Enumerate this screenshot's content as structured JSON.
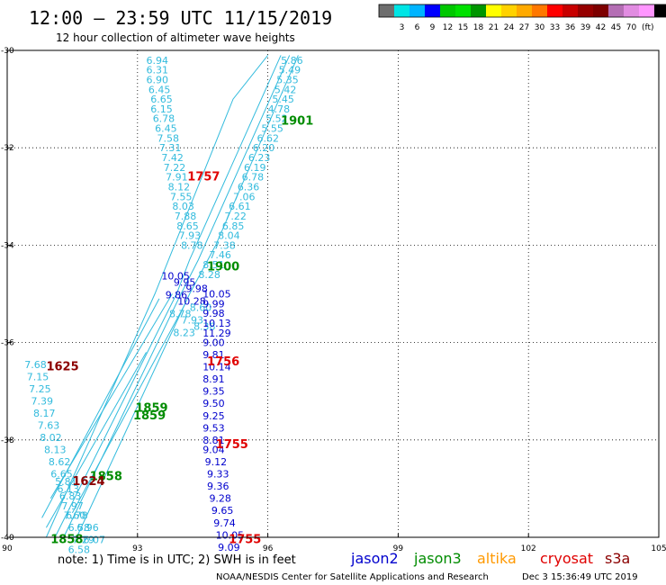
{
  "header": {
    "title": "12:00 – 23:59 UTC 11/15/2019",
    "subtitle": "12 hour collection of altimeter wave heights"
  },
  "colorbar": {
    "colors": [
      "#6e6e6e",
      "#00e5e5",
      "#00b4ff",
      "#0000ff",
      "#00c800",
      "#00e100",
      "#009600",
      "#ffff00",
      "#ffd200",
      "#ffaa00",
      "#ff7800",
      "#ff0000",
      "#c80000",
      "#960000",
      "#7d0000",
      "#b46eb4",
      "#e18ce1",
      "#ff96ff",
      "#000000"
    ],
    "labels": [
      "3",
      "6",
      "9",
      "12",
      "15",
      "18",
      "21",
      "24",
      "27",
      "30",
      "33",
      "36",
      "39",
      "42",
      "45",
      "70"
    ],
    "unit": "(ft)"
  },
  "footer": {
    "note": "note:  1) Time is in UTC;  2) SWH is in feet",
    "credit": "NOAA/NESDIS Center for Satellite Applications and Research",
    "timestamp": "Dec  3 15:36:49 UTC 2019"
  },
  "legend": [
    {
      "name": "jason2",
      "color": "#0000cd"
    },
    {
      "name": "jason3",
      "color": "#008c00"
    },
    {
      "name": "altika",
      "color": "#ff9900"
    },
    {
      "name": "cryosat",
      "color": "#e00000"
    },
    {
      "name": "s3a",
      "color": "#8b0000"
    }
  ],
  "chart_data": {
    "type": "scatter",
    "xlim": [
      90,
      105
    ],
    "ylim": [
      -40,
      -30
    ],
    "xticks": [
      "90",
      "93",
      "96",
      "99",
      "102",
      "105"
    ],
    "yticks": [
      "-30",
      "-32",
      "-34",
      "-36",
      "-38",
      "-40"
    ],
    "grid": true,
    "series": [
      {
        "name": "jason3",
        "color": "#33bbdd",
        "points": [
          [
            93.2,
            -30.2,
            "6.94"
          ],
          [
            93.2,
            -30.4,
            "6.31"
          ],
          [
            93.2,
            -30.6,
            "6.90"
          ],
          [
            93.25,
            -30.8,
            "6.45"
          ],
          [
            93.3,
            -31.0,
            "6.65"
          ],
          [
            93.3,
            -31.2,
            "6.15"
          ],
          [
            93.35,
            -31.4,
            "6.78"
          ],
          [
            93.4,
            -31.6,
            "6.45"
          ],
          [
            93.45,
            -31.8,
            "7.58"
          ],
          [
            93.5,
            -32.0,
            "7.31"
          ],
          [
            93.55,
            -32.2,
            "7.42"
          ],
          [
            93.6,
            -32.4,
            "7.22"
          ],
          [
            93.65,
            -32.6,
            "7.91"
          ],
          [
            93.7,
            -32.8,
            "8.12"
          ],
          [
            93.75,
            -33.0,
            "7.55"
          ],
          [
            93.8,
            -33.2,
            "8.03"
          ],
          [
            93.85,
            -33.4,
            "7.88"
          ],
          [
            93.9,
            -33.6,
            "8.65"
          ],
          [
            93.95,
            -33.8,
            "7.93"
          ],
          [
            94.0,
            -34.0,
            "8.78"
          ]
        ]
      },
      {
        "name": "jason3",
        "color": "#33bbdd",
        "points": [
          [
            96.3,
            -30.2,
            "5.86"
          ],
          [
            96.25,
            -30.4,
            "5.49"
          ],
          [
            96.2,
            -30.6,
            "5.35"
          ],
          [
            96.15,
            -30.8,
            "5.42"
          ],
          [
            96.1,
            -31.0,
            "5.45"
          ],
          [
            96.0,
            -31.2,
            "4.78"
          ],
          [
            95.95,
            -31.4,
            "5.52"
          ],
          [
            95.85,
            -31.6,
            "5.55"
          ],
          [
            95.75,
            -31.8,
            "6.62"
          ],
          [
            95.65,
            -32.0,
            "6.20"
          ],
          [
            95.55,
            -32.2,
            "6.23"
          ],
          [
            95.45,
            -32.4,
            "6.19"
          ],
          [
            95.4,
            -32.6,
            "6.78"
          ],
          [
            95.3,
            -32.8,
            "6.36"
          ],
          [
            95.2,
            -33.0,
            "7.06"
          ],
          [
            95.1,
            -33.2,
            "6.61"
          ],
          [
            95.0,
            -33.4,
            "7.22"
          ],
          [
            94.95,
            -33.6,
            "6.85"
          ],
          [
            94.85,
            -33.8,
            "8.04"
          ],
          [
            94.75,
            -34.0,
            "7.38"
          ],
          [
            94.65,
            -34.2,
            "7.46"
          ],
          [
            94.5,
            -34.4,
            "8.51"
          ],
          [
            94.4,
            -34.6,
            "8.28"
          ]
        ]
      },
      {
        "name": "jason2",
        "color": "#0000cd",
        "points": [
          [
            94.5,
            -35.0,
            "10.05"
          ],
          [
            94.5,
            -35.2,
            "9.99"
          ],
          [
            94.5,
            -35.4,
            "9.98"
          ],
          [
            94.5,
            -35.6,
            "10.13"
          ],
          [
            94.5,
            -35.8,
            "11.29"
          ],
          [
            94.5,
            -36.0,
            "9.00"
          ],
          [
            94.5,
            -36.25,
            "9.81"
          ],
          [
            94.5,
            -36.5,
            "10.14"
          ],
          [
            94.5,
            -36.75,
            "8.91"
          ],
          [
            94.5,
            -37.0,
            "9.35"
          ],
          [
            94.5,
            -37.25,
            "9.50"
          ],
          [
            94.5,
            -37.5,
            "9.25"
          ],
          [
            94.5,
            -37.75,
            "9.53"
          ],
          [
            94.5,
            -38.0,
            "8.81"
          ],
          [
            94.5,
            -38.2,
            "9.04"
          ],
          [
            94.55,
            -38.45,
            "9.12"
          ],
          [
            94.6,
            -38.7,
            "9.33"
          ],
          [
            94.6,
            -38.95,
            "9.36"
          ],
          [
            94.65,
            -39.2,
            "9.28"
          ],
          [
            94.7,
            -39.45,
            "9.65"
          ],
          [
            94.75,
            -39.7,
            "9.74"
          ],
          [
            94.8,
            -39.95,
            "10.05"
          ],
          [
            94.85,
            -40.2,
            "9.09"
          ]
        ]
      },
      {
        "name": "jason3",
        "color": "#33bbdd",
        "points": [
          [
            90.4,
            -36.45,
            "7.68"
          ],
          [
            90.45,
            -36.7,
            "7.15"
          ],
          [
            90.5,
            -36.95,
            "7.25"
          ],
          [
            90.55,
            -37.2,
            "7.39"
          ],
          [
            90.6,
            -37.45,
            "8.17"
          ],
          [
            90.7,
            -37.7,
            "7.63"
          ],
          [
            90.75,
            -37.95,
            "8.02"
          ],
          [
            90.85,
            -38.2,
            "8.13"
          ],
          [
            90.95,
            -38.45,
            "8.62"
          ],
          [
            91.0,
            -38.7,
            "6.65"
          ],
          [
            91.1,
            -38.85,
            "5.81"
          ],
          [
            91.15,
            -39.0,
            "6.13"
          ],
          [
            91.2,
            -39.15,
            "6.83"
          ],
          [
            91.25,
            -39.35,
            "7.97"
          ],
          [
            91.3,
            -39.55,
            "7.60"
          ],
          [
            91.35,
            -39.55,
            "6.78"
          ],
          [
            91.4,
            -39.8,
            "6.58"
          ],
          [
            91.6,
            -39.8,
            "6.96"
          ],
          [
            91.5,
            -40.05,
            "7.29"
          ],
          [
            91.75,
            -40.05,
            "6.07"
          ],
          [
            91.4,
            -40.25,
            "6.58"
          ]
        ]
      }
    ],
    "track_lines": [
      [
        [
          91.1,
          -40.0
        ],
        [
          93.9,
          -35.0
        ],
        [
          94.2,
          -34.3
        ],
        [
          96.3,
          -30.1
        ]
      ],
      [
        [
          91.3,
          -40.0
        ],
        [
          94.0,
          -35.0
        ],
        [
          94.4,
          -34.3
        ],
        [
          96.5,
          -30.1
        ]
      ],
      [
        [
          90.9,
          -40.0
        ],
        [
          93.4,
          -35.0
        ],
        [
          95.2,
          -31.0
        ],
        [
          96.0,
          -30.1
        ]
      ],
      [
        [
          91.6,
          -40.0
        ],
        [
          94.2,
          -35.0
        ],
        [
          94.8,
          -34.0
        ],
        [
          96.7,
          -30.1
        ]
      ],
      [
        [
          90.8,
          -39.6
        ],
        [
          93.5,
          -35.1
        ]
      ],
      [
        [
          91.0,
          -39.2
        ],
        [
          93.8,
          -35.0
        ]
      ],
      [
        [
          90.9,
          -39.8
        ],
        [
          93.2,
          -36.2
        ]
      ],
      [
        [
          91.5,
          -39.5
        ],
        [
          94.1,
          -35.2
        ]
      ]
    ],
    "dense_values": [
      "10.05",
      "9.95",
      "9.98",
      "9.86",
      "10.28",
      "8.60",
      "8.78",
      "7.93",
      "8.38",
      "8.23"
    ],
    "time_labels": [
      {
        "x": 96.3,
        "y": -31.45,
        "text": "1901",
        "color": "#008c00"
      },
      {
        "x": 94.15,
        "y": -32.6,
        "text": "1757",
        "color": "#e00000"
      },
      {
        "x": 94.6,
        "y": -34.45,
        "text": "1900",
        "color": "#008c00"
      },
      {
        "x": 90.9,
        "y": -36.5,
        "text": "1625",
        "color": "#8b0000"
      },
      {
        "x": 94.6,
        "y": -36.4,
        "text": "1756",
        "color": "#e00000"
      },
      {
        "x": 92.95,
        "y": -37.35,
        "text": "1859",
        "color": "#008c00"
      },
      {
        "x": 92.9,
        "y": -37.5,
        "text": "1859",
        "color": "#008c00"
      },
      {
        "x": 94.8,
        "y": -38.1,
        "text": "1755",
        "color": "#e00000"
      },
      {
        "x": 91.9,
        "y": -38.75,
        "text": "1858",
        "color": "#008c00"
      },
      {
        "x": 91.5,
        "y": -38.85,
        "text": "1624",
        "color": "#8b0000"
      },
      {
        "x": 91.0,
        "y": -40.05,
        "text": "1858",
        "color": "#008c00"
      },
      {
        "x": 95.1,
        "y": -40.05,
        "text": "1755",
        "color": "#e00000"
      }
    ]
  }
}
